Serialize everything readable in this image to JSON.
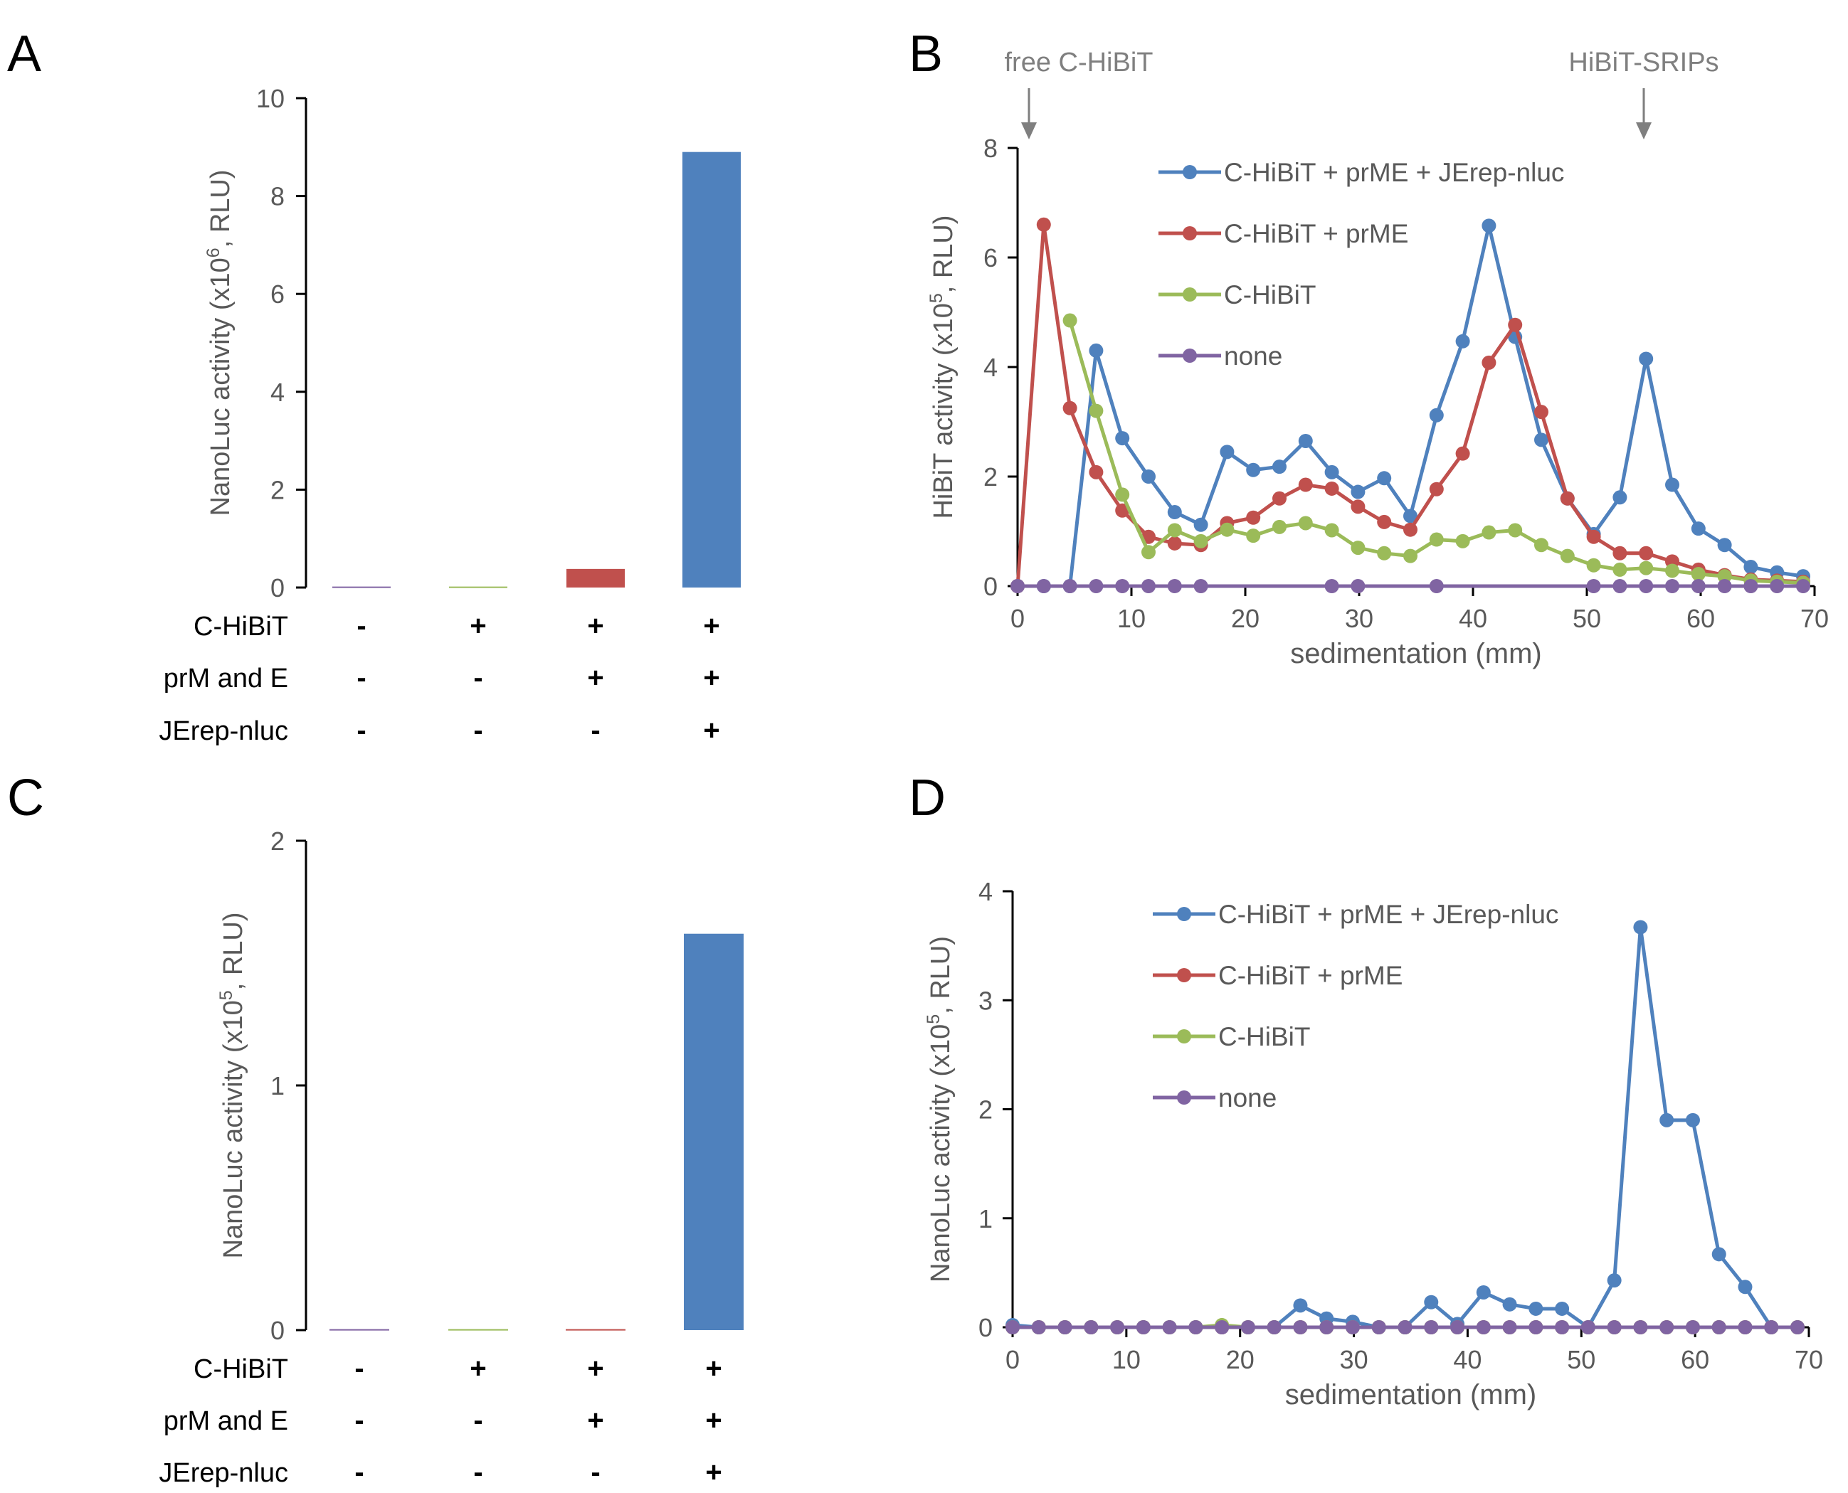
{
  "colors": {
    "blue": "#4F81BD",
    "red": "#C0504D",
    "green": "#9BBB59",
    "purple": "#8064A2",
    "axis": "#000000",
    "tick": "#595959",
    "arrow": "#7f7f7f"
  },
  "chart_data": [
    {
      "panel": "A",
      "type": "bar",
      "ylabel": "NanoLuc activity (x10^6, RLU)",
      "ylabel_base": "NanoLuc activity (x10",
      "ylabel_exp": "6",
      "ylabel_tail": ", RLU)",
      "ylim": [
        0,
        10
      ],
      "yticks": [
        0,
        2,
        4,
        6,
        8,
        10
      ],
      "values": [
        0.02,
        0.02,
        0.38,
        8.9
      ],
      "bar_colors": [
        "purple",
        "green",
        "red",
        "blue"
      ],
      "conditions": [
        {
          "label": "C-HiBiT",
          "marks": [
            "-",
            "+",
            "+",
            "+"
          ]
        },
        {
          "label": "prM and E",
          "marks": [
            "-",
            "-",
            "+",
            "+"
          ]
        },
        {
          "label": "JErep-nluc",
          "marks": [
            "-",
            "-",
            "-",
            "+"
          ]
        }
      ]
    },
    {
      "panel": "B",
      "type": "line",
      "xlabel": "sedimentation (mm)",
      "ylabel": "HiBiT activity (x10^5, RLU)",
      "ylabel_base": "HiBiT activity (x10",
      "ylabel_exp": "5",
      "ylabel_tail": ", RLU)",
      "xlim": [
        0,
        70
      ],
      "ylim": [
        0,
        8
      ],
      "xticks": [
        0,
        10,
        20,
        30,
        40,
        50,
        60,
        70
      ],
      "yticks": [
        0,
        2,
        4,
        6,
        8
      ],
      "legend_position": "top-right",
      "annotations": [
        {
          "text": "free C-HiBiT",
          "x": 1
        },
        {
          "text": "HiBiT-SRIPs",
          "x": 55
        }
      ],
      "series": [
        {
          "name": "C-HiBiT + prME + JErep-nluc",
          "color": "blue",
          "points": [
            [
              0,
              0
            ],
            [
              2.3,
              0
            ],
            [
              4.6,
              0
            ],
            [
              6.9,
              4.3
            ],
            [
              9.2,
              2.7
            ],
            [
              11.5,
              2.0
            ],
            [
              13.8,
              1.35
            ],
            [
              16.1,
              1.12
            ],
            [
              18.4,
              2.45
            ],
            [
              20.7,
              2.12
            ],
            [
              23,
              2.18
            ],
            [
              25.3,
              2.65
            ],
            [
              27.6,
              2.08
            ],
            [
              29.9,
              1.72
            ],
            [
              32.2,
              1.97
            ],
            [
              34.5,
              1.28
            ],
            [
              36.8,
              3.12
            ],
            [
              39.1,
              4.47
            ],
            [
              41.4,
              6.58
            ],
            [
              43.7,
              4.55
            ],
            [
              46,
              2.67
            ],
            [
              48.3,
              1.6
            ],
            [
              50.6,
              0.95
            ],
            [
              52.9,
              1.62
            ],
            [
              55.2,
              4.15
            ],
            [
              57.5,
              1.85
            ],
            [
              59.8,
              1.05
            ],
            [
              62.1,
              0.75
            ],
            [
              64.4,
              0.35
            ],
            [
              66.7,
              0.25
            ],
            [
              69,
              0.18
            ]
          ]
        },
        {
          "name": "C-HiBiT + prME",
          "color": "red",
          "points": [
            [
              0,
              0
            ],
            [
              2.3,
              6.6
            ],
            [
              4.6,
              3.25
            ],
            [
              6.9,
              2.08
            ],
            [
              9.2,
              1.38
            ],
            [
              11.5,
              0.9
            ],
            [
              13.8,
              0.78
            ],
            [
              16.1,
              0.75
            ],
            [
              18.4,
              1.15
            ],
            [
              20.7,
              1.25
            ],
            [
              23,
              1.6
            ],
            [
              25.3,
              1.85
            ],
            [
              27.6,
              1.78
            ],
            [
              29.9,
              1.45
            ],
            [
              32.2,
              1.17
            ],
            [
              34.5,
              1.03
            ],
            [
              36.8,
              1.77
            ],
            [
              39.1,
              2.42
            ],
            [
              41.4,
              4.08
            ],
            [
              43.7,
              4.77
            ],
            [
              46,
              3.18
            ],
            [
              48.3,
              1.6
            ],
            [
              50.6,
              0.9
            ],
            [
              52.9,
              0.6
            ],
            [
              55.2,
              0.6
            ],
            [
              57.5,
              0.45
            ],
            [
              59.8,
              0.3
            ],
            [
              62.1,
              0.2
            ],
            [
              64.4,
              0.12
            ],
            [
              66.7,
              0.1
            ],
            [
              69,
              0.08
            ]
          ]
        },
        {
          "name": "C-HiBiT",
          "color": "green",
          "points": [
            [
              4.6,
              4.85
            ],
            [
              6.9,
              3.2
            ],
            [
              9.2,
              1.67
            ],
            [
              11.5,
              0.62
            ],
            [
              13.8,
              1.02
            ],
            [
              16.1,
              0.82
            ],
            [
              18.4,
              1.03
            ],
            [
              20.7,
              0.92
            ],
            [
              23,
              1.08
            ],
            [
              25.3,
              1.15
            ],
            [
              27.6,
              1.02
            ],
            [
              29.9,
              0.7
            ],
            [
              32.2,
              0.6
            ],
            [
              34.5,
              0.55
            ],
            [
              36.8,
              0.85
            ],
            [
              39.1,
              0.82
            ],
            [
              41.4,
              0.98
            ],
            [
              43.7,
              1.02
            ],
            [
              46,
              0.75
            ],
            [
              48.3,
              0.55
            ],
            [
              50.6,
              0.38
            ],
            [
              52.9,
              0.3
            ],
            [
              55.2,
              0.33
            ],
            [
              57.5,
              0.28
            ],
            [
              59.8,
              0.22
            ],
            [
              62.1,
              0.18
            ],
            [
              64.4,
              0.1
            ],
            [
              66.7,
              0.08
            ],
            [
              69,
              0.06
            ]
          ]
        },
        {
          "name": "none",
          "color": "purple",
          "points": [
            [
              0,
              0
            ],
            [
              2.3,
              0
            ],
            [
              4.6,
              0
            ],
            [
              6.9,
              0
            ],
            [
              9.2,
              0
            ],
            [
              11.5,
              0
            ],
            [
              13.8,
              0
            ],
            [
              16.1,
              0
            ],
            [
              27.6,
              0
            ],
            [
              29.9,
              0
            ],
            [
              36.8,
              0
            ],
            [
              50.6,
              0
            ],
            [
              52.9,
              0
            ],
            [
              55.2,
              0
            ],
            [
              57.5,
              0
            ],
            [
              59.8,
              0
            ],
            [
              62.1,
              0
            ],
            [
              64.4,
              0
            ],
            [
              66.7,
              0
            ],
            [
              69,
              0
            ]
          ]
        }
      ]
    },
    {
      "panel": "C",
      "type": "bar",
      "ylabel": "NanoLuc activity (x10^5, RLU)",
      "ylabel_base": "NanoLuc activity (x10",
      "ylabel_exp": "5",
      "ylabel_tail": ", RLU)",
      "ylim": [
        0,
        2
      ],
      "yticks": [
        0,
        1,
        2
      ],
      "values": [
        0.004,
        0.004,
        0.004,
        1.62
      ],
      "bar_colors": [
        "purple",
        "green",
        "red",
        "blue"
      ],
      "conditions": [
        {
          "label": "C-HiBiT",
          "marks": [
            "-",
            "+",
            "+",
            "+"
          ]
        },
        {
          "label": "prM and E",
          "marks": [
            "-",
            "-",
            "+",
            "+"
          ]
        },
        {
          "label": "JErep-nluc",
          "marks": [
            "-",
            "-",
            "-",
            "+"
          ]
        }
      ]
    },
    {
      "panel": "D",
      "type": "line",
      "xlabel": "sedimentation (mm)",
      "ylabel": "NanoLuc activity (x10^5, RLU)",
      "ylabel_base": "NanoLuc activity (x10",
      "ylabel_exp": "5",
      "ylabel_tail": ", RLU)",
      "xlim": [
        0,
        70
      ],
      "ylim": [
        0,
        4
      ],
      "xticks": [
        0,
        10,
        20,
        30,
        40,
        50,
        60,
        70
      ],
      "yticks": [
        0,
        1,
        2,
        3,
        4
      ],
      "legend_position": "top-right",
      "series": [
        {
          "name": "C-HiBiT + prME + JErep-nluc",
          "color": "blue",
          "points": [
            [
              0,
              0.02
            ],
            [
              2.3,
              0
            ],
            [
              4.6,
              0
            ],
            [
              6.9,
              0
            ],
            [
              9.2,
              0
            ],
            [
              11.5,
              0
            ],
            [
              13.8,
              0
            ],
            [
              16.1,
              0
            ],
            [
              18.4,
              0
            ],
            [
              20.7,
              0
            ],
            [
              23,
              0
            ],
            [
              25.3,
              0.2
            ],
            [
              27.6,
              0.08
            ],
            [
              29.9,
              0.05
            ],
            [
              32.2,
              0
            ],
            [
              34.5,
              0
            ],
            [
              36.8,
              0.23
            ],
            [
              39.1,
              0.03
            ],
            [
              41.4,
              0.32
            ],
            [
              43.7,
              0.21
            ],
            [
              46,
              0.17
            ],
            [
              48.3,
              0.17
            ],
            [
              50.6,
              0
            ],
            [
              52.9,
              0.43
            ],
            [
              55.2,
              3.67
            ],
            [
              57.5,
              1.9
            ],
            [
              59.8,
              1.9
            ],
            [
              62.1,
              0.67
            ],
            [
              64.4,
              0.37
            ],
            [
              66.7,
              0
            ],
            [
              69,
              0
            ]
          ]
        },
        {
          "name": "C-HiBiT + prME",
          "color": "red",
          "points": [
            [
              0,
              0
            ],
            [
              2.3,
              0
            ],
            [
              4.6,
              0
            ],
            [
              6.9,
              0
            ],
            [
              9.2,
              0
            ],
            [
              11.5,
              0
            ],
            [
              13.8,
              0
            ],
            [
              16.1,
              0
            ],
            [
              18.4,
              0
            ],
            [
              20.7,
              0
            ],
            [
              23,
              0
            ],
            [
              25.3,
              0
            ],
            [
              27.6,
              0
            ],
            [
              29.9,
              0
            ],
            [
              32.2,
              0
            ],
            [
              34.5,
              0
            ],
            [
              36.8,
              0
            ],
            [
              39.1,
              0
            ],
            [
              41.4,
              0
            ],
            [
              43.7,
              0
            ],
            [
              46,
              0
            ],
            [
              48.3,
              0
            ],
            [
              50.6,
              0
            ],
            [
              52.9,
              0
            ],
            [
              55.2,
              0
            ],
            [
              57.5,
              0
            ],
            [
              59.8,
              0
            ],
            [
              62.1,
              0
            ],
            [
              64.4,
              0
            ],
            [
              66.7,
              0
            ],
            [
              69,
              0
            ]
          ]
        },
        {
          "name": "C-HiBiT",
          "color": "green",
          "points": [
            [
              0,
              0
            ],
            [
              2.3,
              0
            ],
            [
              4.6,
              0
            ],
            [
              6.9,
              0
            ],
            [
              9.2,
              0
            ],
            [
              11.5,
              0
            ],
            [
              13.8,
              0
            ],
            [
              16.1,
              0
            ],
            [
              18.4,
              0.02
            ],
            [
              20.7,
              0
            ],
            [
              23,
              0
            ],
            [
              25.3,
              0
            ],
            [
              27.6,
              0
            ],
            [
              29.9,
              0
            ],
            [
              32.2,
              0
            ],
            [
              34.5,
              0
            ],
            [
              36.8,
              0
            ],
            [
              39.1,
              0
            ],
            [
              41.4,
              0
            ],
            [
              43.7,
              0
            ],
            [
              46,
              0
            ],
            [
              48.3,
              0
            ],
            [
              50.6,
              0
            ],
            [
              52.9,
              0
            ],
            [
              55.2,
              0
            ],
            [
              57.5,
              0
            ],
            [
              59.8,
              0
            ],
            [
              62.1,
              0
            ],
            [
              64.4,
              0
            ],
            [
              66.7,
              0
            ],
            [
              69,
              0
            ]
          ]
        },
        {
          "name": "none",
          "color": "purple",
          "points": [
            [
              0,
              0
            ],
            [
              2.3,
              0
            ],
            [
              4.6,
              0
            ],
            [
              6.9,
              0
            ],
            [
              9.2,
              0
            ],
            [
              11.5,
              0
            ],
            [
              13.8,
              0
            ],
            [
              16.1,
              0
            ],
            [
              18.4,
              0
            ],
            [
              20.7,
              0
            ],
            [
              23,
              0
            ],
            [
              25.3,
              0
            ],
            [
              27.6,
              0
            ],
            [
              29.9,
              0
            ],
            [
              32.2,
              0
            ],
            [
              34.5,
              0
            ],
            [
              36.8,
              0
            ],
            [
              39.1,
              0
            ],
            [
              41.4,
              0
            ],
            [
              43.7,
              0
            ],
            [
              46,
              0
            ],
            [
              48.3,
              0
            ],
            [
              50.6,
              0
            ],
            [
              52.9,
              0
            ],
            [
              55.2,
              0
            ],
            [
              57.5,
              0
            ],
            [
              59.8,
              0
            ],
            [
              62.1,
              0
            ],
            [
              64.4,
              0
            ],
            [
              66.7,
              0
            ],
            [
              69,
              0
            ]
          ]
        }
      ]
    }
  ]
}
